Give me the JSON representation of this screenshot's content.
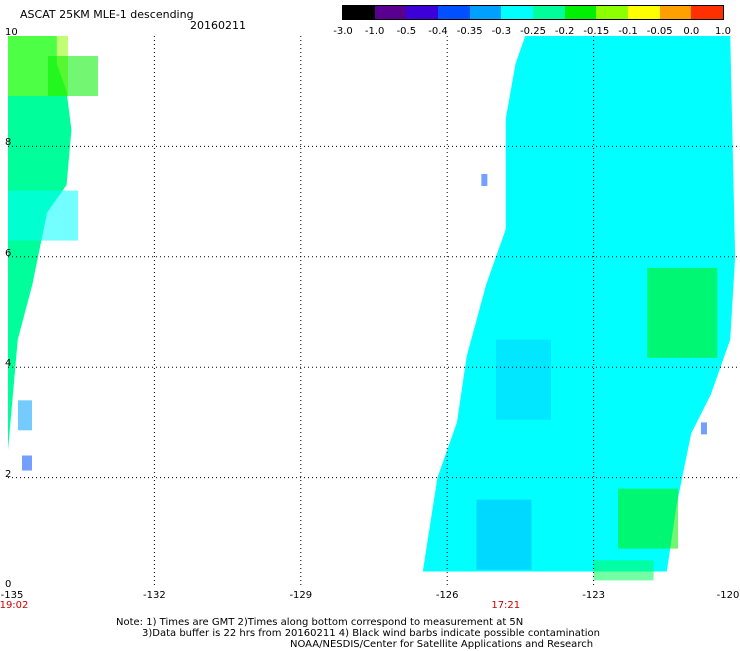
{
  "header": {
    "title": "ASCAT 25KM MLE-1 descending",
    "date": "20160211"
  },
  "colorbar": {
    "labels": [
      "-3.0",
      "-1.0",
      "-0.5",
      "-0.4",
      "-0.35",
      "-0.3",
      "-0.25",
      "-0.2",
      "-0.15",
      "-0.1",
      "-0.05",
      "0.0",
      "1.0"
    ],
    "colors": [
      "#000000",
      "#5a0090",
      "#3c00d8",
      "#0050ff",
      "#00a0ff",
      "#00ffff",
      "#00ff9a",
      "#00f000",
      "#8cff00",
      "#ffff00",
      "#ffa000",
      "#ff3000"
    ]
  },
  "chart_data": {
    "type": "heatmap",
    "x_ticks": [
      "-135",
      "-132",
      "-129",
      "-126",
      "-123",
      "-120"
    ],
    "y_ticks": [
      "0",
      "2",
      "4",
      "6",
      "8",
      "10"
    ],
    "xlim": [
      -135,
      -120
    ],
    "ylim": [
      0,
      10
    ],
    "grid": true,
    "times": [
      {
        "label": "19:02",
        "x": -135
      },
      {
        "label": "17:21",
        "x": -124.8
      }
    ],
    "swaths": [
      {
        "left": [
          [
            -134.0,
            10
          ],
          [
            -134.0,
            9.5
          ],
          [
            -133.8,
            9.0
          ],
          [
            -133.7,
            8.3
          ],
          [
            -133.8,
            7.3
          ],
          [
            -134.2,
            6.8
          ],
          [
            -134.5,
            5.5
          ],
          [
            -134.8,
            4.5
          ],
          [
            -135,
            2.5
          ],
          [
            -135,
            1.3
          ],
          [
            -135,
            10
          ]
        ],
        "fill": "#00ff9a"
      },
      {
        "right": [
          [
            -120.2,
            10
          ],
          [
            -120.1,
            6
          ],
          [
            -120.2,
            4.5
          ],
          [
            -120.6,
            3.5
          ],
          [
            -121.0,
            2.8
          ],
          [
            -121.3,
            1.5
          ],
          [
            -121.5,
            0.3
          ],
          [
            -126.5,
            0.3
          ],
          [
            -126.2,
            2.0
          ],
          [
            -125.8,
            3.0
          ],
          [
            -125.6,
            4.2
          ],
          [
            -125.2,
            5.5
          ],
          [
            -124.8,
            6.5
          ],
          [
            -124.8,
            8.5
          ],
          [
            -124.6,
            9.5
          ],
          [
            -124.4,
            10
          ]
        ],
        "fill": "#00ffff"
      }
    ]
  },
  "notes": {
    "line1": "Note: 1) Times are GMT 2)Times along bottom correspond to measurement at 5N",
    "line2": "3)Data buffer is 22 hrs from 20160211 4) Black wind barbs indicate possible contamination",
    "line3": "NOAA/NESDIS/Center for Satellite Applications and Research"
  }
}
